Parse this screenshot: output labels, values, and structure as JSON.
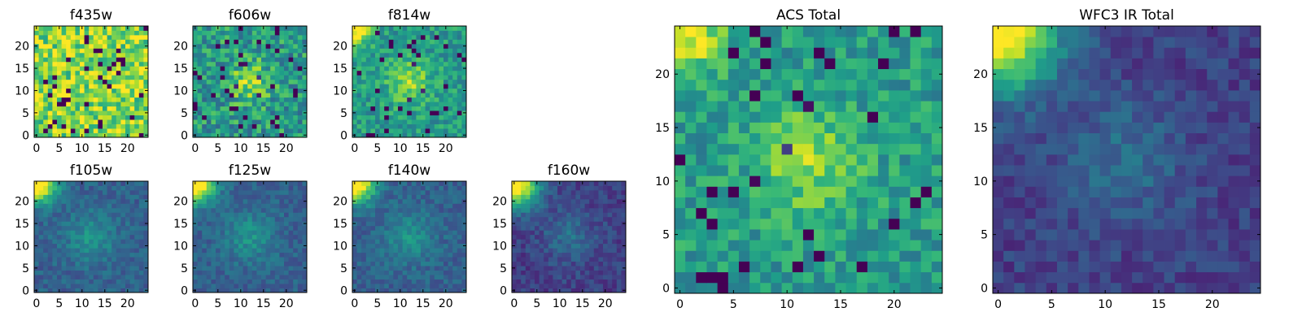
{
  "chart_data": [
    {
      "type": "heatmap",
      "title": "f435w",
      "xticks": [
        0,
        5,
        10,
        15,
        20
      ],
      "yticks": [
        0,
        5,
        10,
        15,
        20
      ],
      "xlim": [
        0,
        25
      ],
      "ylim": [
        0,
        25
      ],
      "grid": false,
      "colormap": "viridis",
      "seed": 11,
      "pattern": "noise_high"
    },
    {
      "type": "heatmap",
      "title": "f606w",
      "xticks": [
        0,
        5,
        10,
        15,
        20
      ],
      "yticks": [
        0,
        5,
        10,
        15,
        20
      ],
      "xlim": [
        0,
        25
      ],
      "ylim": [
        0,
        25
      ],
      "grid": false,
      "colormap": "viridis",
      "seed": 23,
      "pattern": "noise_center"
    },
    {
      "type": "heatmap",
      "title": "f814w",
      "xticks": [
        0,
        5,
        10,
        15,
        20
      ],
      "yticks": [
        0,
        5,
        10,
        15,
        20
      ],
      "xlim": [
        0,
        25
      ],
      "ylim": [
        0,
        25
      ],
      "grid": false,
      "colormap": "viridis",
      "seed": 37,
      "pattern": "noise_center_corner"
    },
    {
      "type": "heatmap",
      "title": "f105w",
      "xticks": [
        0,
        5,
        10,
        15,
        20
      ],
      "yticks": [
        0,
        5,
        10,
        15,
        20
      ],
      "xlim": [
        0,
        25
      ],
      "ylim": [
        0,
        25
      ],
      "grid": false,
      "colormap": "viridis",
      "seed": 41,
      "pattern": "smooth_corner"
    },
    {
      "type": "heatmap",
      "title": "f125w",
      "xticks": [
        0,
        5,
        10,
        15,
        20
      ],
      "yticks": [
        0,
        5,
        10,
        15,
        20
      ],
      "xlim": [
        0,
        25
      ],
      "ylim": [
        0,
        25
      ],
      "grid": false,
      "colormap": "viridis",
      "seed": 53,
      "pattern": "smooth_corner"
    },
    {
      "type": "heatmap",
      "title": "f140w",
      "xticks": [
        0,
        5,
        10,
        15,
        20
      ],
      "yticks": [
        0,
        5,
        10,
        15,
        20
      ],
      "xlim": [
        0,
        25
      ],
      "ylim": [
        0,
        25
      ],
      "grid": false,
      "colormap": "viridis",
      "seed": 67,
      "pattern": "smooth_corner"
    },
    {
      "type": "heatmap",
      "title": "f160w",
      "xticks": [
        0,
        5,
        10,
        15,
        20
      ],
      "yticks": [
        0,
        5,
        10,
        15,
        20
      ],
      "xlim": [
        0,
        25
      ],
      "ylim": [
        0,
        25
      ],
      "grid": false,
      "colormap": "viridis",
      "seed": 79,
      "pattern": "smooth_corner_dark"
    },
    {
      "type": "heatmap",
      "title": "ACS Total",
      "xticks": [
        0,
        5,
        10,
        15,
        20
      ],
      "yticks": [
        0,
        5,
        10,
        15,
        20
      ],
      "xlim": [
        0,
        25
      ],
      "ylim": [
        0,
        25
      ],
      "grid": false,
      "colormap": "viridis",
      "seed": 97,
      "pattern": "noise_center_corner"
    },
    {
      "type": "heatmap",
      "title": "WFC3 IR Total",
      "xticks": [
        0,
        5,
        10,
        15,
        20
      ],
      "yticks": [
        0,
        5,
        10,
        15,
        20
      ],
      "xlim": [
        0,
        25
      ],
      "ylim": [
        0,
        25
      ],
      "grid": false,
      "colormap": "viridis",
      "seed": 101,
      "pattern": "smooth_corner_dark"
    }
  ]
}
